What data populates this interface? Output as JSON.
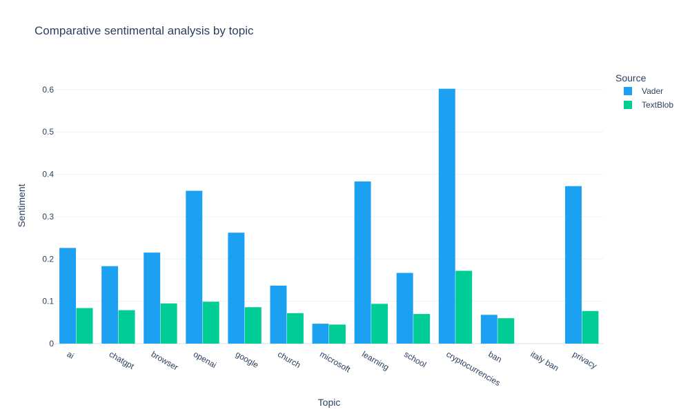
{
  "chart_data": {
    "type": "bar",
    "title": "Comparative sentimental analysis by topic",
    "xlabel": "Topic",
    "ylabel": "Sentiment",
    "ylim": [
      0,
      0.665
    ],
    "yticks": [
      0,
      0.1,
      0.2,
      0.3,
      0.4,
      0.5,
      0.6
    ],
    "ytick_labels": [
      "0",
      "0.1",
      "0.2",
      "0.3",
      "0.4",
      "0.5",
      "0.6"
    ],
    "categories": [
      "ai",
      "chatgpt",
      "browser",
      "openai",
      "google",
      "church",
      "microsoft",
      "learning",
      "school",
      "cryptocurrencies",
      "ban",
      "italy ban",
      "privacy"
    ],
    "legend_title": "Source",
    "legend_position": "top-right",
    "grid": true,
    "series": [
      {
        "name": "Vader",
        "color": "#1ca0f2",
        "values": [
          0.226,
          0.183,
          0.215,
          0.361,
          0.262,
          0.137,
          0.047,
          0.383,
          0.167,
          0.602,
          0.068,
          0.0,
          0.372
        ]
      },
      {
        "name": "TextBlob",
        "color": "#00cc96",
        "values": [
          0.084,
          0.079,
          0.095,
          0.099,
          0.086,
          0.072,
          0.045,
          0.094,
          0.07,
          0.172,
          0.06,
          0.0,
          0.077
        ]
      }
    ]
  }
}
